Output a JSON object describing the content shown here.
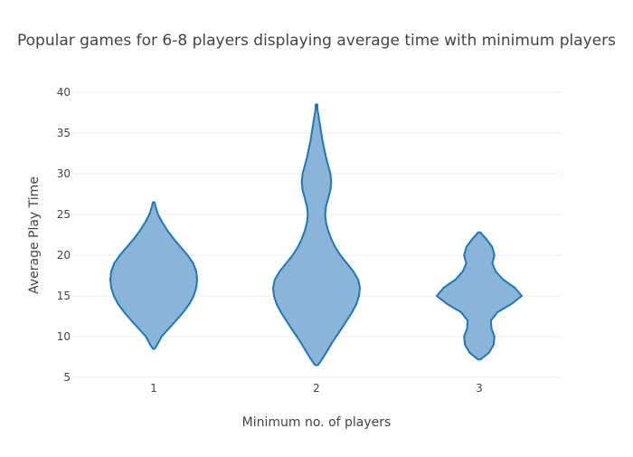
{
  "chart_data": {
    "type": "violin",
    "title": "Popular games for 6-8 players displaying average time with minimum players",
    "xlabel": "Minimum no. of players",
    "ylabel": "Average Play Time",
    "categories": [
      "1",
      "2",
      "3"
    ],
    "ylim": [
      5,
      40
    ],
    "yticks": [
      "5",
      "10",
      "15",
      "20",
      "25",
      "30",
      "35",
      "40"
    ],
    "grid": true,
    "fill_color": "#8ab4d8",
    "line_color": "#1f77b4",
    "violins": [
      {
        "category": "1",
        "min": 8.5,
        "max": 26.5,
        "profile": [
          [
            8.5,
            0.02
          ],
          [
            9,
            0.08
          ],
          [
            10,
            0.18
          ],
          [
            11,
            0.35
          ],
          [
            12,
            0.52
          ],
          [
            13,
            0.68
          ],
          [
            14,
            0.82
          ],
          [
            15,
            0.92
          ],
          [
            16,
            0.98
          ],
          [
            17,
            1.0
          ],
          [
            18,
            0.98
          ],
          [
            19,
            0.91
          ],
          [
            20,
            0.78
          ],
          [
            21,
            0.62
          ],
          [
            22,
            0.46
          ],
          [
            23,
            0.32
          ],
          [
            24,
            0.2
          ],
          [
            25,
            0.1
          ],
          [
            26,
            0.04
          ],
          [
            26.5,
            0.02
          ]
        ]
      },
      {
        "category": "2",
        "min": 6.5,
        "max": 38.5,
        "profile": [
          [
            6.5,
            0.03
          ],
          [
            7,
            0.1
          ],
          [
            8,
            0.22
          ],
          [
            9,
            0.33
          ],
          [
            10,
            0.45
          ],
          [
            11,
            0.58
          ],
          [
            12,
            0.7
          ],
          [
            13,
            0.82
          ],
          [
            14,
            0.92
          ],
          [
            15,
            0.98
          ],
          [
            16,
            1.0
          ],
          [
            17,
            0.96
          ],
          [
            18,
            0.85
          ],
          [
            19,
            0.7
          ],
          [
            20,
            0.55
          ],
          [
            21,
            0.43
          ],
          [
            22,
            0.34
          ],
          [
            23,
            0.27
          ],
          [
            24,
            0.22
          ],
          [
            25,
            0.2
          ],
          [
            26,
            0.22
          ],
          [
            27,
            0.27
          ],
          [
            28,
            0.32
          ],
          [
            29,
            0.34
          ],
          [
            30,
            0.32
          ],
          [
            31,
            0.27
          ],
          [
            32,
            0.22
          ],
          [
            33,
            0.18
          ],
          [
            34,
            0.14
          ],
          [
            35,
            0.11
          ],
          [
            36,
            0.08
          ],
          [
            37,
            0.05
          ],
          [
            38,
            0.02
          ],
          [
            38.5,
            0.02
          ]
        ]
      },
      {
        "category": "3",
        "min": 7.2,
        "max": 22.8,
        "profile": [
          [
            7.2,
            0.03
          ],
          [
            7.5,
            0.1
          ],
          [
            8,
            0.22
          ],
          [
            9,
            0.33
          ],
          [
            10,
            0.35
          ],
          [
            11,
            0.28
          ],
          [
            12,
            0.27
          ],
          [
            13,
            0.42
          ],
          [
            14,
            0.74
          ],
          [
            15,
            0.98
          ],
          [
            16,
            0.82
          ],
          [
            17,
            0.55
          ],
          [
            18,
            0.38
          ],
          [
            19,
            0.3
          ],
          [
            20,
            0.35
          ],
          [
            21,
            0.3
          ],
          [
            22,
            0.16
          ],
          [
            22.5,
            0.07
          ],
          [
            22.8,
            0.03
          ]
        ]
      }
    ]
  }
}
